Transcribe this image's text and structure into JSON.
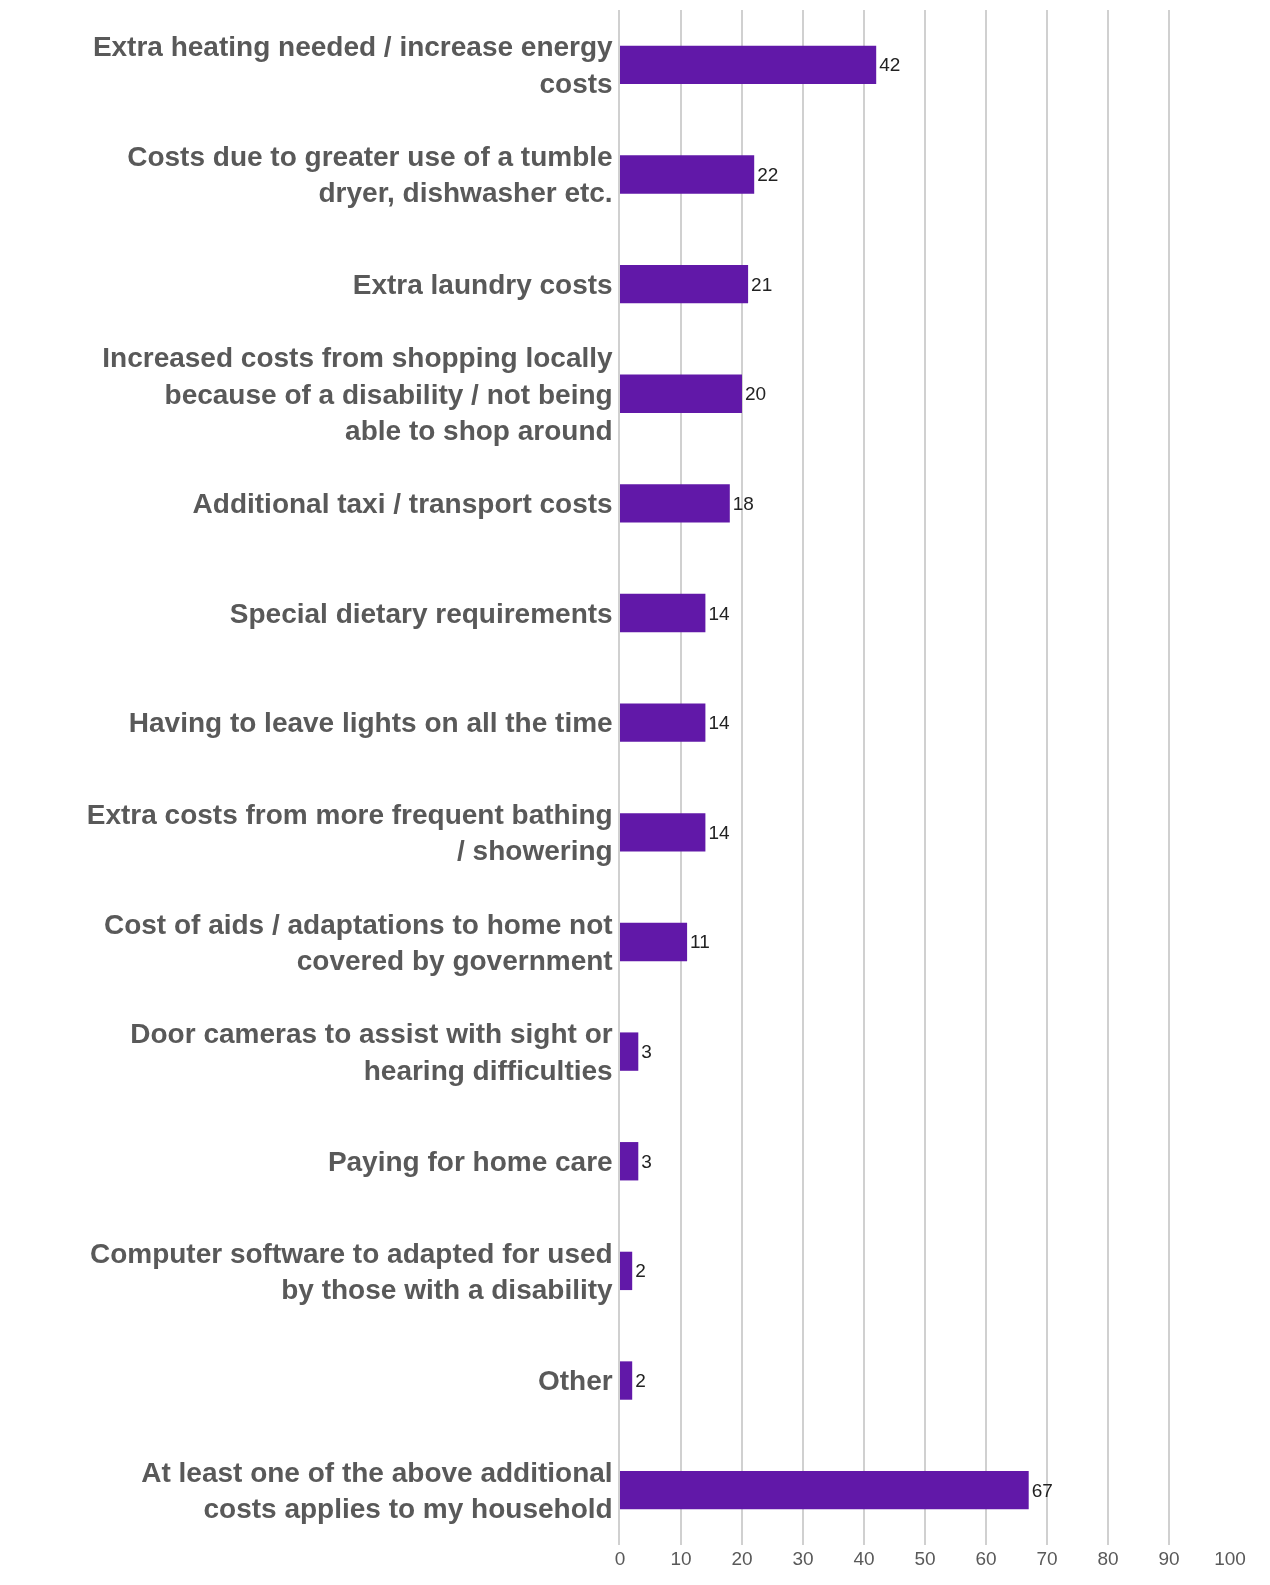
{
  "chart_data": {
    "type": "bar",
    "orientation": "horizontal",
    "categories": [
      "Extra heating needed / increase energy costs",
      "Costs due to greater use of a tumble dryer, dishwasher etc.",
      "Extra laundry costs",
      "Increased costs from shopping locally because of a disability / not being able to shop around",
      "Additional taxi / transport costs",
      "Special dietary requirements",
      "Having to leave lights on all the time",
      "Extra costs from more frequent bathing / showering",
      "Cost of aids / adaptations to home not covered by government",
      "Door cameras to assist with sight or hearing difficulties",
      "Paying for home care",
      "Computer software to adapted for used by those with a disability",
      "Other",
      "At least one of the above additional costs applies to my household"
    ],
    "values": [
      42,
      22,
      21,
      20,
      18,
      14,
      14,
      14,
      11,
      3,
      3,
      2,
      2,
      67
    ],
    "color": "#6118a8",
    "xlim": [
      0,
      100
    ],
    "xticks": [
      0,
      10,
      20,
      30,
      40,
      50,
      60,
      70,
      80,
      90,
      100
    ],
    "grid": "x",
    "data_labels": true
  }
}
